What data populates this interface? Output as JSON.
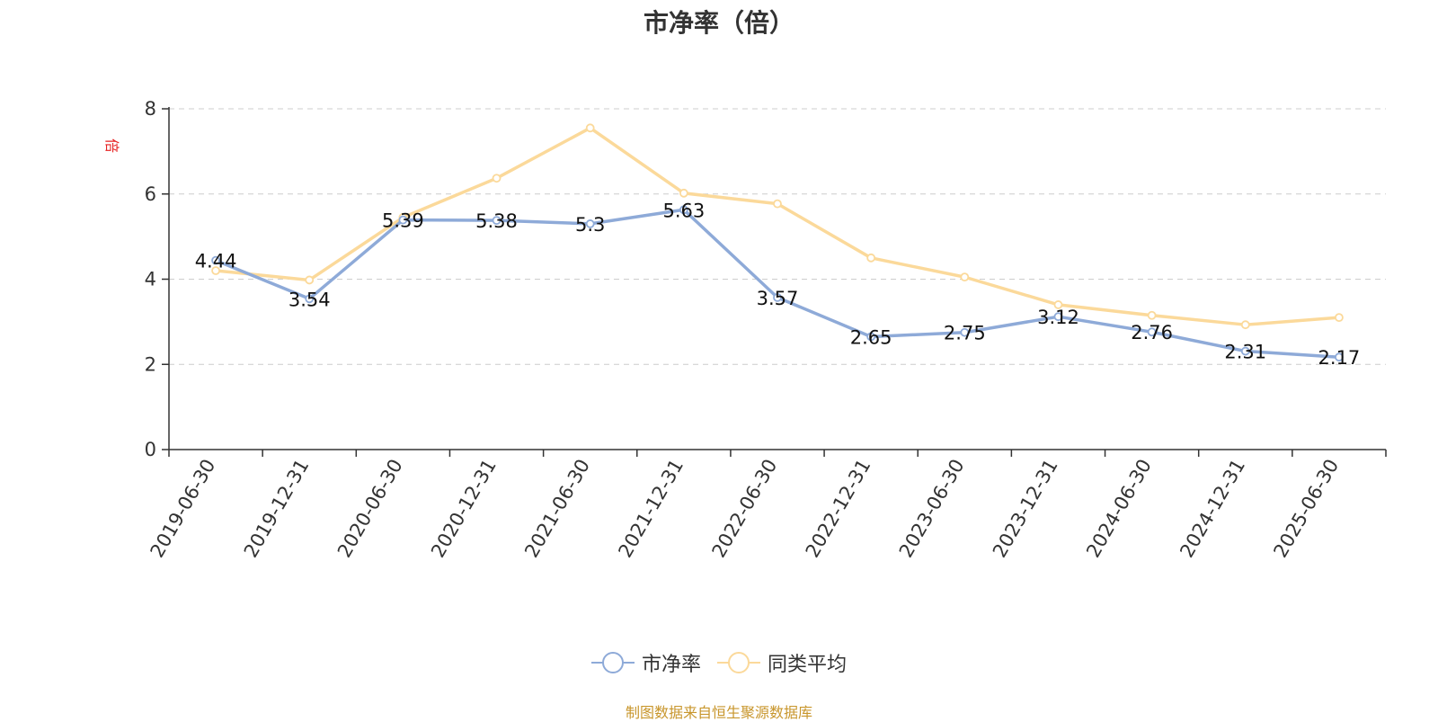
{
  "chart_data": {
    "type": "line",
    "title": "市净率（倍）",
    "ylabel": "倍",
    "categories": [
      "2019-06-30",
      "2019-12-31",
      "2020-06-30",
      "2020-12-31",
      "2021-06-30",
      "2021-12-31",
      "2022-06-30",
      "2022-12-31",
      "2023-06-30",
      "2023-12-31",
      "2024-06-30",
      "2024-12-31",
      "2025-06-30"
    ],
    "ylim": [
      0,
      8
    ],
    "yticks": [
      "0",
      "2",
      "4",
      "6",
      "8"
    ],
    "grid": true,
    "legend_position": "bottom",
    "series": [
      {
        "name": "市净率",
        "color": "#8eaad8",
        "values": [
          4.44,
          3.54,
          5.39,
          5.38,
          5.3,
          5.63,
          3.57,
          2.65,
          2.75,
          3.12,
          2.76,
          2.31,
          2.17
        ],
        "labels": [
          "4.44",
          "3.54",
          "5.39",
          "5.38",
          "5.3",
          "5.63",
          "3.57",
          "2.65",
          "2.75",
          "3.12",
          "2.76",
          "2.31",
          "2.17"
        ]
      },
      {
        "name": "同类平均",
        "color": "#fbd99a",
        "values": [
          4.2,
          3.98,
          5.45,
          6.37,
          7.55,
          6.02,
          5.77,
          4.5,
          4.05,
          3.4,
          3.15,
          2.93,
          3.1
        ]
      }
    ],
    "source": "制图数据来自恒生聚源数据库"
  }
}
